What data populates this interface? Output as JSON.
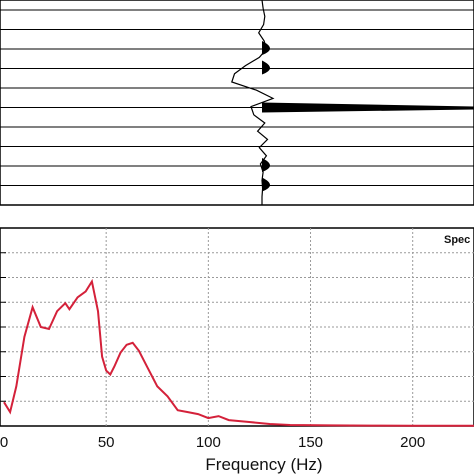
{
  "chart_data": [
    {
      "type": "line",
      "title": "",
      "xlabel": "",
      "ylabel": "",
      "trace_count": 11,
      "series": [
        {
          "t": [
            0,
            0.04,
            0.08,
            0.12,
            0.16,
            0.2,
            0.24,
            0.28,
            0.32,
            0.36,
            0.4,
            0.44,
            0.48,
            0.52,
            0.56,
            0.6,
            0.64,
            0.68,
            0.72,
            0.76,
            0.8,
            0.84,
            0.88,
            0.92,
            0.96,
            1.0
          ],
          "amplitude": [
            0,
            0.02,
            0.05,
            0.03,
            -0.06,
            0.04,
            0.08,
            -0.05,
            -0.3,
            -0.5,
            -0.55,
            -0.1,
            0.2,
            -0.2,
            -0.15,
            0.05,
            -0.08,
            0.1,
            -0.05,
            0.08,
            -0.03,
            0.02,
            0,
            0.01,
            0,
            0
          ]
        }
      ],
      "fill_positive_lobes": true,
      "center_trace_tail": true
    },
    {
      "type": "line",
      "title": "",
      "xlabel": "Frequency (Hz)",
      "ylabel": "",
      "legend_label": "Spec",
      "legend_position": "top-right",
      "grid": true,
      "xlim": [
        0,
        230
      ],
      "ylim": [
        0,
        1
      ],
      "xticks": [
        0,
        50,
        100,
        150,
        200
      ],
      "series": [
        {
          "color": "#d4213a",
          "x": [
            0,
            3,
            6,
            10,
            14,
            18,
            22,
            26,
            30,
            32,
            36,
            40,
            43,
            46,
            48,
            50,
            52,
            54,
            57,
            60,
            63,
            66,
            70,
            75,
            80,
            85,
            90,
            95,
            100,
            105,
            110,
            120,
            130,
            140,
            160,
            180,
            200,
            230
          ],
          "y": [
            0.12,
            0.07,
            0.2,
            0.45,
            0.6,
            0.5,
            0.49,
            0.58,
            0.62,
            0.59,
            0.65,
            0.68,
            0.73,
            0.58,
            0.35,
            0.28,
            0.26,
            0.3,
            0.37,
            0.41,
            0.42,
            0.38,
            0.3,
            0.2,
            0.15,
            0.08,
            0.07,
            0.06,
            0.04,
            0.05,
            0.03,
            0.02,
            0.01,
            0.005,
            0.003,
            0.002,
            0.001,
            0.001
          ]
        }
      ]
    }
  ],
  "colors": {
    "spectrum_line": "#d4213a",
    "frame": "#000000",
    "grid": "#9a9a9a",
    "panel_bg": "#ffffff"
  }
}
